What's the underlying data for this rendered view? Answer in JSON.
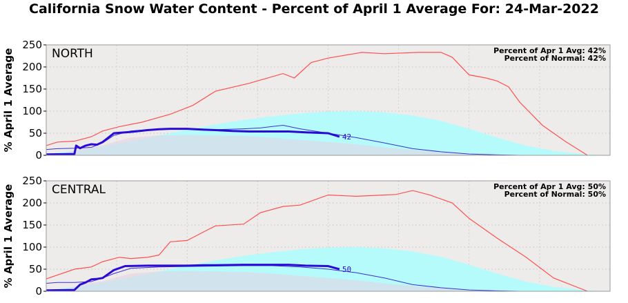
{
  "title": "California Snow Water Content - Percent of April 1 Average For: 24-Mar-2022",
  "colors": {
    "plot_bg": "#eeebeb",
    "normal_fill": "#b6fbfb",
    "max_line": "#ff5050",
    "min_fill": "#e8d0e0",
    "prior_line": "#3b2fd0",
    "current_line": "#2a0bd6",
    "grid": "#cfcfcf"
  },
  "chart_data": [
    {
      "type": "line",
      "region_label": "NORTH",
      "ylabel": "% April 1 Average",
      "ylim": [
        0,
        250
      ],
      "xlim": [
        0,
        100
      ],
      "yticks": [
        0,
        50,
        100,
        150,
        200,
        250
      ],
      "grid": true,
      "notes": [
        "Percent of Apr 1 Avg: 42%",
        "Percent of Normal: 42%"
      ],
      "end_label": "42",
      "series": [
        {
          "role": "average",
          "style": "fill",
          "x": [
            0,
            5,
            10,
            15,
            20,
            25,
            30,
            35,
            40,
            45,
            50,
            55,
            60,
            65,
            70,
            75,
            80,
            85,
            90,
            95,
            100
          ],
          "y": [
            3,
            10,
            20,
            32,
            45,
            58,
            70,
            80,
            88,
            95,
            99,
            100,
            97,
            90,
            78,
            60,
            40,
            22,
            10,
            3,
            0
          ]
        },
        {
          "role": "maximum",
          "style": "line",
          "x": [
            0,
            2,
            5,
            8,
            10,
            13,
            17,
            22,
            26,
            30,
            36,
            42,
            44,
            47,
            50,
            56,
            60,
            66,
            70,
            72,
            75,
            78,
            80,
            82,
            84,
            88,
            92,
            96
          ],
          "y": [
            22,
            30,
            32,
            42,
            55,
            65,
            75,
            93,
            113,
            145,
            163,
            185,
            175,
            210,
            220,
            233,
            230,
            233,
            233,
            222,
            182,
            175,
            168,
            155,
            120,
            68,
            32,
            0
          ]
        },
        {
          "role": "minimum",
          "style": "fill",
          "x": [
            0,
            3,
            6,
            8,
            10,
            12,
            15,
            20,
            25,
            30,
            35,
            40,
            45,
            50,
            55,
            60,
            65,
            70,
            75,
            80,
            85,
            90
          ],
          "y": [
            2,
            3,
            15,
            20,
            22,
            30,
            40,
            45,
            46,
            45,
            44,
            40,
            35,
            30,
            25,
            18,
            12,
            7,
            3,
            1,
            0,
            0
          ]
        },
        {
          "role": "prior_year",
          "style": "line",
          "x": [
            0,
            2,
            5,
            8,
            10,
            12,
            15,
            20,
            25,
            30,
            35,
            38,
            40,
            42,
            45,
            50,
            55,
            60,
            65,
            70,
            75,
            80,
            84
          ],
          "y": [
            13,
            15,
            16,
            18,
            28,
            45,
            55,
            60,
            60,
            58,
            60,
            62,
            65,
            68,
            60,
            50,
            40,
            28,
            15,
            8,
            3,
            1,
            0
          ]
        },
        {
          "role": "current_year",
          "style": "line",
          "x": [
            0,
            5,
            5.3,
            6,
            7,
            8,
            9,
            10,
            12,
            15,
            18,
            20,
            22,
            25,
            28,
            30,
            33,
            36,
            40,
            43,
            46,
            50,
            52
          ],
          "y": [
            2,
            3,
            22,
            16,
            22,
            25,
            24,
            30,
            50,
            53,
            57,
            59,
            60,
            60,
            58,
            57,
            55,
            54,
            54,
            54,
            52,
            50,
            42
          ]
        }
      ]
    },
    {
      "type": "line",
      "region_label": "CENTRAL",
      "ylabel": "% April 1 Average",
      "ylim": [
        0,
        250
      ],
      "xlim": [
        0,
        100
      ],
      "yticks": [
        0,
        50,
        100,
        150,
        200,
        250
      ],
      "grid": true,
      "notes": [
        "Percent of Apr 1 Avg: 50%",
        "Percent of Normal: 50%"
      ],
      "end_label": "50",
      "series": [
        {
          "role": "average",
          "style": "fill",
          "x": [
            0,
            5,
            10,
            15,
            20,
            25,
            30,
            35,
            40,
            45,
            50,
            55,
            60,
            65,
            70,
            75,
            80,
            85,
            90,
            95,
            100
          ],
          "y": [
            3,
            10,
            20,
            32,
            45,
            58,
            70,
            80,
            88,
            95,
            99,
            100,
            97,
            90,
            78,
            60,
            40,
            22,
            10,
            3,
            0
          ]
        },
        {
          "role": "maximum",
          "style": "line",
          "x": [
            0,
            5,
            8,
            10,
            13,
            15,
            18,
            20,
            22,
            25,
            28,
            30,
            35,
            38,
            42,
            45,
            50,
            55,
            60,
            62,
            65,
            68,
            72,
            75,
            80,
            85,
            90,
            96
          ],
          "y": [
            28,
            50,
            55,
            67,
            77,
            74,
            77,
            82,
            112,
            115,
            135,
            148,
            152,
            178,
            192,
            195,
            218,
            215,
            218,
            219,
            228,
            218,
            200,
            165,
            120,
            78,
            30,
            0
          ]
        },
        {
          "role": "minimum",
          "style": "fill",
          "x": [
            0,
            3,
            6,
            8,
            10,
            12,
            15,
            20,
            25,
            30,
            35,
            40,
            45,
            50,
            55,
            60,
            65,
            70,
            75,
            80,
            85,
            90
          ],
          "y": [
            2,
            3,
            15,
            20,
            22,
            30,
            40,
            45,
            46,
            45,
            44,
            40,
            35,
            30,
            25,
            18,
            12,
            7,
            3,
            1,
            0,
            0
          ]
        },
        {
          "role": "prior_year",
          "style": "line",
          "x": [
            0,
            2,
            5,
            8,
            10,
            12,
            15,
            20,
            25,
            30,
            35,
            40,
            45,
            50,
            55,
            60,
            65,
            70,
            75,
            80,
            84
          ],
          "y": [
            18,
            20,
            20,
            22,
            30,
            40,
            52,
            55,
            56,
            57,
            58,
            58,
            55,
            50,
            42,
            30,
            15,
            8,
            3,
            1,
            0
          ]
        },
        {
          "role": "current_year",
          "style": "line",
          "x": [
            0,
            5,
            6,
            7,
            8,
            9,
            10,
            12,
            14,
            18,
            22,
            25,
            28,
            30,
            35,
            40,
            43,
            46,
            50,
            52
          ],
          "y": [
            2,
            3,
            15,
            20,
            27,
            28,
            30,
            48,
            57,
            58,
            58,
            58,
            59,
            59,
            60,
            60,
            60,
            58,
            57,
            50
          ]
        }
      ]
    }
  ]
}
